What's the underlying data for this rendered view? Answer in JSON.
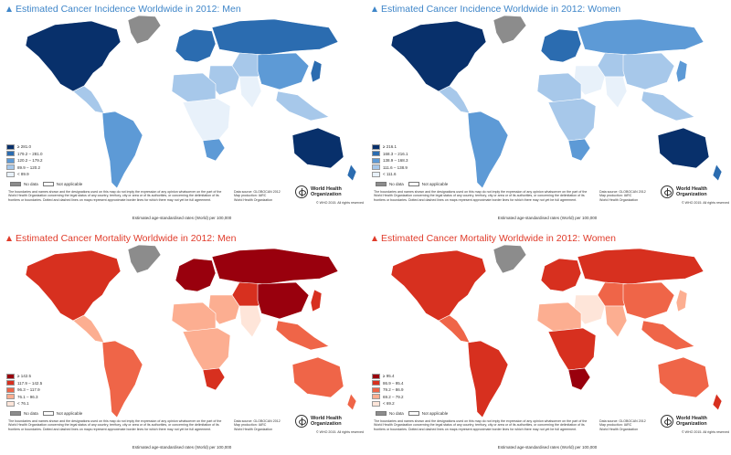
{
  "panels": [
    {
      "title": "Estimated Cancer Incidence Worldwide in 2012: Men",
      "title_color": "#3f86c9",
      "palette": [
        "#08306b",
        "#2b6cb0",
        "#5d9ad6",
        "#a7c8ea",
        "#e8f1fa"
      ],
      "legend": [
        "≥ 281.0",
        "179.2 – 281.0",
        "120.2 – 179.2",
        "89.9 – 120.2",
        "< 89.9"
      ],
      "caption": "Estimated age-standardised rates (World) per 100,000",
      "levels": {
        "northAmerica": 0,
        "greenland": 5,
        "mexico": 3,
        "southAmerica": 2,
        "europe": 1,
        "russia": 1,
        "centralAsia": 3,
        "middleEast": 3,
        "northAfrica": 3,
        "africa": 4,
        "southAfrica": 2,
        "india": 4,
        "china": 2,
        "seAsia": 3,
        "japan": 1,
        "australia": 0,
        "newZealand": 1
      }
    },
    {
      "title": "Estimated Cancer Incidence Worldwide in 2012: Women",
      "title_color": "#3f86c9",
      "palette": [
        "#08306b",
        "#2b6cb0",
        "#5d9ad6",
        "#a7c8ea",
        "#e8f1fa"
      ],
      "legend": [
        "≥ 216.1",
        "168.3 – 216.1",
        "138.9 – 168.3",
        "111.6 – 138.9",
        "< 111.6"
      ],
      "caption": "Estimated age-standardised rates (World) per 100,000",
      "levels": {
        "northAmerica": 0,
        "greenland": 5,
        "mexico": 3,
        "southAmerica": 2,
        "europe": 1,
        "russia": 2,
        "centralAsia": 3,
        "middleEast": 4,
        "northAfrica": 3,
        "africa": 3,
        "southAfrica": 2,
        "india": 4,
        "china": 3,
        "seAsia": 3,
        "japan": 2,
        "australia": 0,
        "newZealand": 1
      }
    },
    {
      "title": "Estimated Cancer Mortality Worldwide in 2012: Men",
      "title_color": "#e03b2a",
      "palette": [
        "#99000d",
        "#d7301f",
        "#ef6548",
        "#fcae91",
        "#fee5d9"
      ],
      "legend": [
        "≥ 142.5",
        "117.9 – 142.5",
        "96.3 – 117.9",
        "76.1 – 96.3",
        "< 76.1"
      ],
      "caption": "Estimated age-standardised rates (World) per 100,000",
      "levels": {
        "northAmerica": 1,
        "greenland": 5,
        "mexico": 3,
        "southAmerica": 2,
        "europe": 0,
        "russia": 0,
        "centralAsia": 1,
        "middleEast": 3,
        "northAfrica": 3,
        "africa": 3,
        "southAfrica": 1,
        "india": 4,
        "china": 0,
        "seAsia": 2,
        "japan": 1,
        "australia": 2,
        "newZealand": 2
      }
    },
    {
      "title": "Estimated Cancer Mortality Worldwide in 2012: Women",
      "title_color": "#e03b2a",
      "palette": [
        "#99000d",
        "#d7301f",
        "#ef6548",
        "#fcae91",
        "#fee5d9"
      ],
      "legend": [
        "≥ 95.4",
        "86.9 – 95.4",
        "79.2 – 86.9",
        "69.2 – 79.2",
        "< 69.2"
      ],
      "caption": "Estimated age-standardised rates (World) per 100,000",
      "levels": {
        "northAmerica": 1,
        "greenland": 5,
        "mexico": 2,
        "southAmerica": 1,
        "europe": 1,
        "russia": 1,
        "centralAsia": 2,
        "middleEast": 4,
        "northAfrica": 3,
        "africa": 1,
        "southAfrica": 0,
        "india": 3,
        "china": 2,
        "seAsia": 2,
        "japan": 3,
        "australia": 2,
        "newZealand": 1
      }
    }
  ],
  "common": {
    "no_data": "No data",
    "not_applicable": "Not applicable",
    "no_data_color": "#8c8c8c",
    "not_applicable_color": "#ffffff",
    "disclaimer": "The boundaries and names shown and the designations used on this map do not imply the expression of any opinion whatsoever on the part of the World Health Organization concerning the legal status of any country, territory, city or area or of its authorities, or concerning the delimitation of its frontiers or boundaries. Dotted and dashed lines on maps represent approximate border lines for which there may not yet be full agreement.",
    "source_line1": "Data source: GLOBOCAN 2012",
    "source_line2": "Map production: IARC",
    "source_line3": "World Health Organization",
    "who_line1": "World Health",
    "who_line2": "Organization",
    "copyright": "© WHO 2015. All rights reserved"
  }
}
